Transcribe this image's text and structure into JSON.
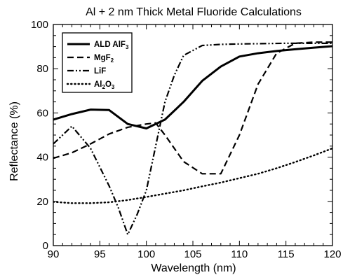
{
  "chart_data": {
    "type": "line",
    "title": "Al + 2 nm Thick Metal Fluoride Calculations",
    "xlabel": "Wavelength (nm)",
    "ylabel": "Reflectance (%)",
    "xlim": [
      90,
      120
    ],
    "ylim": [
      0,
      100
    ],
    "xticks": [
      90,
      95,
      100,
      105,
      110,
      115,
      120
    ],
    "yticks": [
      0,
      20,
      40,
      60,
      80,
      100
    ],
    "grid": false,
    "legend_position": "top-left",
    "series": [
      {
        "name": "ALD AlF3",
        "label_main": "ALD AlF",
        "label_sub": "3",
        "label_after": "",
        "style": "solid",
        "x": [
          90,
          92,
          94,
          96,
          98,
          100,
          102,
          104,
          106,
          108,
          110,
          112,
          114,
          116,
          118,
          120
        ],
        "y": [
          57,
          59.5,
          61.5,
          61.3,
          55,
          53,
          57,
          65,
          74.5,
          81,
          85.5,
          87,
          88,
          88.8,
          89.5,
          90.2
        ]
      },
      {
        "name": "MgF2",
        "label_main": "MgF",
        "label_sub": "2",
        "label_after": "",
        "style": "dashed",
        "x": [
          90,
          92,
          94,
          96,
          98,
          100,
          101,
          102,
          104,
          106,
          108,
          110,
          112,
          114,
          116,
          118,
          120
        ],
        "y": [
          39.5,
          42,
          46,
          50.5,
          53.5,
          55,
          55.5,
          50,
          38,
          32.5,
          32.5,
          50,
          73,
          87,
          91.5,
          92,
          92
        ]
      },
      {
        "name": "LiF",
        "label_main": "LiF",
        "label_sub": "",
        "label_after": "",
        "style": "dashdot",
        "x": [
          90,
          92,
          94,
          96,
          97,
          98,
          99,
          100,
          101,
          102,
          103,
          104,
          106,
          108,
          110,
          115,
          120
        ],
        "y": [
          46,
          54,
          44,
          27,
          17,
          5,
          14,
          25,
          45,
          65,
          77,
          86,
          90.5,
          91,
          91.2,
          91.5,
          91.5
        ]
      },
      {
        "name": "Al2O3",
        "label_main": "Al",
        "label_sub": "2",
        "label_after": "O",
        "label_sub2": "3",
        "style": "dotted",
        "x": [
          90,
          92,
          94,
          96,
          98,
          100,
          102,
          104,
          106,
          108,
          110,
          112,
          114,
          116,
          118,
          120
        ],
        "y": [
          19.8,
          19.2,
          19.2,
          19.6,
          20.6,
          22,
          23.5,
          25,
          26.8,
          28.5,
          30.5,
          32.5,
          35,
          37.8,
          40.8,
          44
        ]
      }
    ]
  }
}
